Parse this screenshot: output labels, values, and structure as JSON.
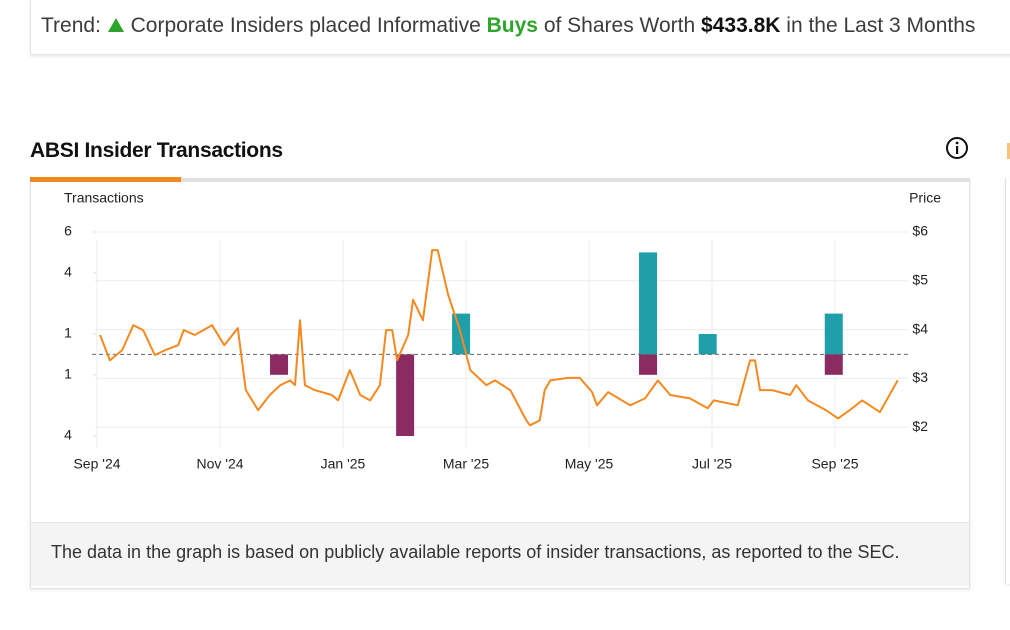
{
  "banner": {
    "label": "Trend:",
    "text_before": "Corporate Insiders placed Informative",
    "action": "Buys",
    "text_middle": "of Shares Worth",
    "amount": "$433.8K",
    "text_after": "in the Last 3 Months"
  },
  "section_title": "ABSI Insider Transactions",
  "footnote": "The data in the graph is based on publicly available reports of insider transactions, as reported to the SEC.",
  "chart_data": {
    "type": "bar-line",
    "y_label": "Transactions",
    "y2_label": "Price",
    "xlim": [
      -0.6,
      13.2
    ],
    "xticks": [
      {
        "value": 0,
        "label": "Sep '24"
      },
      {
        "value": 2,
        "label": "Nov '24"
      },
      {
        "value": 4,
        "label": "Jan '25"
      },
      {
        "value": 6,
        "label": "Mar '25"
      },
      {
        "value": 8,
        "label": "May '25"
      },
      {
        "value": 10,
        "label": "Jul '25"
      },
      {
        "value": 12,
        "label": "Sep '25"
      }
    ],
    "ylim": [
      -4,
      6
    ],
    "yticks": [
      6,
      4,
      1,
      {
        "value": -1,
        "label": "1"
      },
      {
        "value": -4,
        "label": "4"
      }
    ],
    "y2lim": [
      1.82,
      6
    ],
    "y2ticks": [
      {
        "value": 6,
        "label": "$6"
      },
      {
        "value": 5,
        "label": "$5"
      },
      {
        "value": 4,
        "label": "$4"
      },
      {
        "value": 3,
        "label": "$3"
      },
      {
        "value": 2,
        "label": "$2"
      }
    ],
    "grid": true,
    "series": [
      {
        "type": "bar",
        "color": "#1f9fa9",
        "x": [
          5.92,
          8.96,
          9.93,
          11.98
        ],
        "values": [
          2,
          5,
          1,
          2
        ]
      },
      {
        "type": "bar",
        "color": "#8c2a62",
        "x": [
          2.96,
          5.01,
          8.96,
          11.98
        ],
        "values": [
          -1,
          -4,
          -1,
          -1
        ]
      },
      {
        "type": "line",
        "color": "#f5891f",
        "axis": "y2",
        "x": [
          0.05,
          0.21,
          0.41,
          0.59,
          0.75,
          0.94,
          1.11,
          1.32,
          1.41,
          1.59,
          1.87,
          2.07,
          2.29,
          2.42,
          2.62,
          2.81,
          2.98,
          3.14,
          3.22,
          3.3,
          3.38,
          3.54,
          3.82,
          3.92,
          4.11,
          4.28,
          4.44,
          4.6,
          4.7,
          4.8,
          4.88,
          5.06,
          5.14,
          5.3,
          5.45,
          5.54,
          5.71,
          5.9,
          6.07,
          6.33,
          6.47,
          6.72,
          6.98,
          7.04,
          7.2,
          7.28,
          7.37,
          7.66,
          7.85,
          8.05,
          8.13,
          8.31,
          8.67,
          8.91,
          9.12,
          9.32,
          9.64,
          9.93,
          10.03,
          10.42,
          10.62,
          10.7,
          10.78,
          10.98,
          11.27,
          11.37,
          11.56,
          11.85,
          12.05,
          12.24,
          12.44,
          12.73,
          13.02
        ],
        "values": [
          3.89,
          3.37,
          3.58,
          4.09,
          3.99,
          3.48,
          3.58,
          3.68,
          3.99,
          3.89,
          4.09,
          3.68,
          4.03,
          2.76,
          2.35,
          2.66,
          2.86,
          2.96,
          2.86,
          4.19,
          2.86,
          2.76,
          2.66,
          2.55,
          3.17,
          2.66,
          2.55,
          2.86,
          3.99,
          3.99,
          3.37,
          3.89,
          4.61,
          4.19,
          5.63,
          5.63,
          4.71,
          3.99,
          3.17,
          2.86,
          2.96,
          2.76,
          2.14,
          2.04,
          2.14,
          2.76,
          2.96,
          3.01,
          3.01,
          2.72,
          2.45,
          2.72,
          2.45,
          2.59,
          2.96,
          2.66,
          2.59,
          2.39,
          2.55,
          2.45,
          3.37,
          3.37,
          2.76,
          2.76,
          2.66,
          2.86,
          2.55,
          2.35,
          2.18,
          2.35,
          2.55,
          2.31,
          2.96
        ]
      }
    ]
  }
}
